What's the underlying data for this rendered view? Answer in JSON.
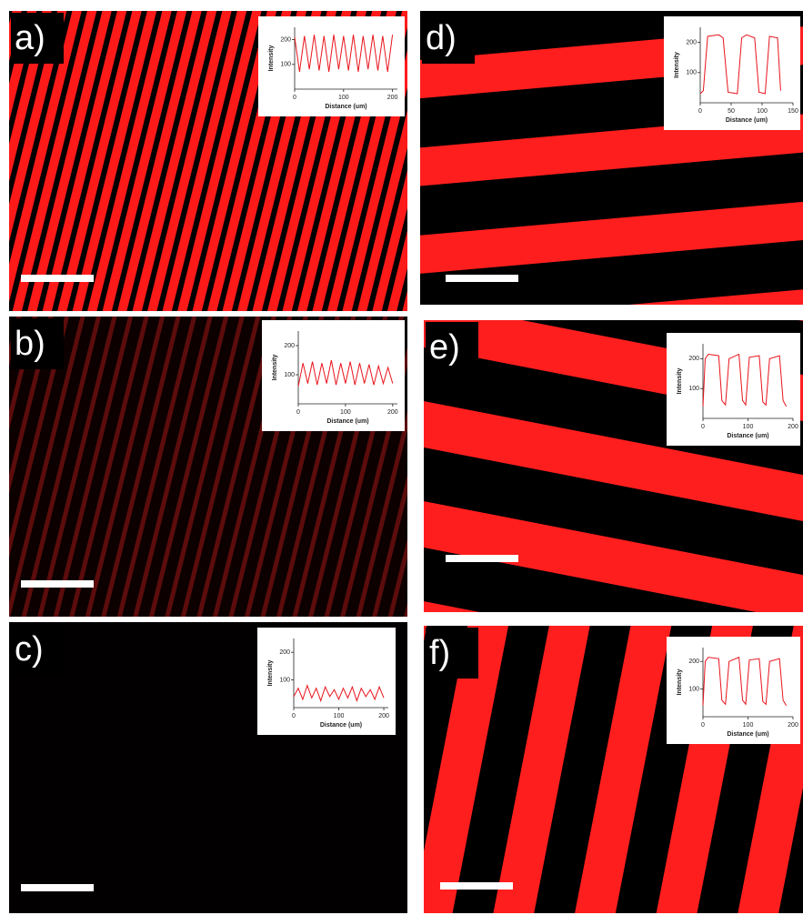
{
  "panels": [
    {
      "label": "a)",
      "inset": {
        "ylabel": "Intensity",
        "xlabel": "Distance (um)",
        "xlim": [
          0,
          210
        ],
        "ylim": [
          0,
          250
        ],
        "xticks": [
          0,
          100,
          200
        ],
        "yticks": [
          100,
          200
        ],
        "x": [
          0,
          10,
          20,
          30,
          40,
          50,
          60,
          70,
          80,
          90,
          100,
          110,
          120,
          130,
          140,
          150,
          160,
          170,
          180,
          190,
          200
        ],
        "values": [
          210,
          70,
          215,
          80,
          220,
          75,
          215,
          70,
          220,
          80,
          215,
          75,
          220,
          70,
          215,
          80,
          220,
          75,
          215,
          70,
          220
        ]
      }
    },
    {
      "label": "b)",
      "inset": {
        "ylabel": "Intensity",
        "xlabel": "Distance (um)",
        "xlim": [
          0,
          210
        ],
        "ylim": [
          0,
          250
        ],
        "xticks": [
          0,
          100,
          200
        ],
        "yticks": [
          100,
          200
        ],
        "x": [
          0,
          10,
          20,
          30,
          40,
          50,
          60,
          70,
          80,
          90,
          100,
          110,
          120,
          130,
          140,
          150,
          160,
          170,
          180,
          190,
          200
        ],
        "values": [
          60,
          140,
          70,
          145,
          65,
          140,
          70,
          150,
          65,
          140,
          70,
          145,
          65,
          140,
          70,
          135,
          65,
          130,
          70,
          125,
          70
        ]
      }
    },
    {
      "label": "c)",
      "inset": {
        "ylabel": "Intensity",
        "xlabel": "Distance (um)",
        "xlim": [
          0,
          210
        ],
        "ylim": [
          0,
          250
        ],
        "xticks": [
          0,
          100,
          200
        ],
        "yticks": [
          100,
          200
        ],
        "x": [
          0,
          10,
          20,
          30,
          40,
          50,
          60,
          70,
          80,
          90,
          100,
          110,
          120,
          130,
          140,
          150,
          160,
          170,
          180,
          190,
          200
        ],
        "values": [
          40,
          70,
          30,
          80,
          35,
          70,
          25,
          75,
          40,
          65,
          30,
          70,
          35,
          75,
          25,
          70,
          40,
          65,
          30,
          75,
          35
        ]
      }
    },
    {
      "label": "d)",
      "inset": {
        "ylabel": "Intensity",
        "xlabel": "Distance (um)",
        "xlim": [
          0,
          150
        ],
        "ylim": [
          0,
          250
        ],
        "xticks": [
          0,
          50,
          100,
          150
        ],
        "yticks": [
          100,
          200
        ],
        "x": [
          0,
          5,
          12,
          30,
          37,
          45,
          60,
          67,
          75,
          88,
          95,
          105,
          112,
          125,
          130
        ],
        "values": [
          30,
          40,
          220,
          225,
          215,
          35,
          30,
          215,
          225,
          215,
          35,
          30,
          220,
          215,
          40
        ]
      }
    },
    {
      "label": "e)",
      "inset": {
        "ylabel": "Intensity",
        "xlabel": "Distance (um)",
        "xlim": [
          0,
          200
        ],
        "ylim": [
          0,
          250
        ],
        "xticks": [
          0,
          100,
          200
        ],
        "yticks": [
          100,
          200
        ],
        "x": [
          0,
          5,
          12,
          35,
          42,
          50,
          58,
          80,
          88,
          95,
          103,
          125,
          133,
          140,
          148,
          170,
          178,
          185
        ],
        "values": [
          40,
          200,
          215,
          210,
          60,
          45,
          200,
          215,
          60,
          45,
          205,
          210,
          55,
          45,
          200,
          210,
          60,
          40
        ]
      }
    },
    {
      "label": "f)",
      "inset": {
        "ylabel": "Intensity",
        "xlabel": "Distance (um)",
        "xlim": [
          0,
          200
        ],
        "ylim": [
          0,
          250
        ],
        "xticks": [
          0,
          100,
          200
        ],
        "yticks": [
          100,
          200
        ],
        "x": [
          0,
          5,
          12,
          35,
          42,
          50,
          58,
          80,
          88,
          95,
          103,
          125,
          133,
          140,
          148,
          170,
          178,
          185
        ],
        "values": [
          40,
          200,
          215,
          210,
          60,
          45,
          200,
          215,
          60,
          45,
          205,
          210,
          55,
          45,
          200,
          210,
          60,
          40
        ]
      }
    }
  ]
}
